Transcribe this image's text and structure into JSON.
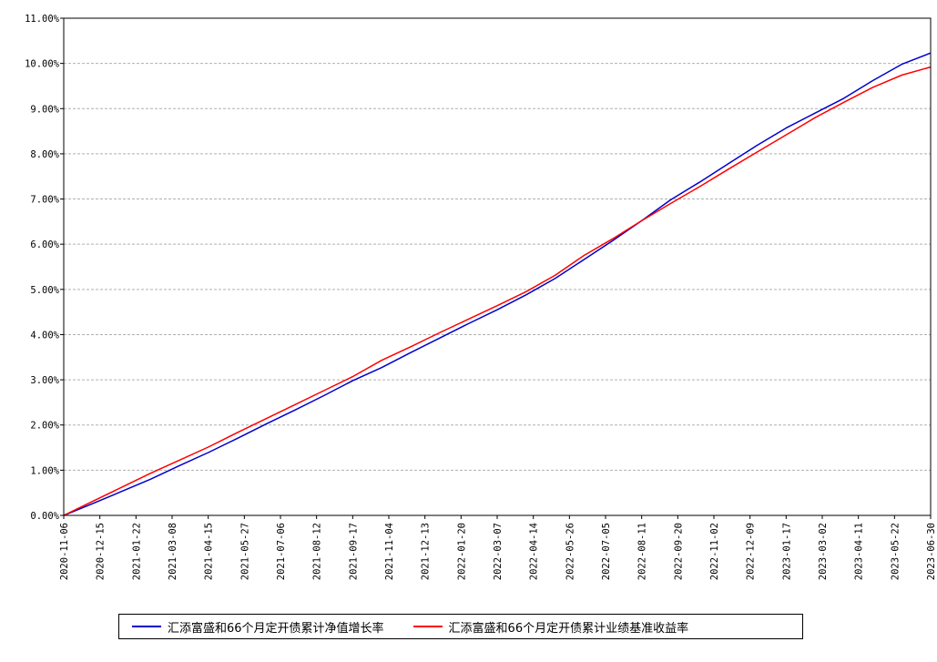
{
  "chart_data": {
    "type": "line",
    "title": "",
    "xlabel": "",
    "ylabel": "",
    "ylim": [
      0,
      11
    ],
    "y_ticks": [
      "0.00%",
      "1.00%",
      "2.00%",
      "3.00%",
      "4.00%",
      "5.00%",
      "6.00%",
      "7.00%",
      "8.00%",
      "9.00%",
      "10.00%",
      "11.00%"
    ],
    "x_ticks": [
      "2020-11-06",
      "2020-12-15",
      "2021-01-22",
      "2021-03-08",
      "2021-04-15",
      "2021-05-27",
      "2021-07-06",
      "2021-08-12",
      "2021-09-17",
      "2021-11-04",
      "2021-12-13",
      "2022-01-20",
      "2022-03-07",
      "2022-04-14",
      "2022-05-26",
      "2022-07-05",
      "2022-08-11",
      "2022-09-20",
      "2022-11-02",
      "2022-12-09",
      "2023-01-17",
      "2023-03-02",
      "2023-04-11",
      "2023-05-22",
      "2023-06-30"
    ],
    "grid": true,
    "legend_position": "bottom",
    "series": [
      {
        "name": "汇添富盛和66个月定开债累计净值增长率",
        "color": "#0000cc",
        "values": [
          0.0,
          0.26,
          0.53,
          0.8,
          1.1,
          1.39,
          1.7,
          2.02,
          2.33,
          2.65,
          2.98,
          3.27,
          3.6,
          3.92,
          4.24,
          4.55,
          4.88,
          5.24,
          5.66,
          6.08,
          6.52,
          6.98,
          7.37,
          7.78,
          8.19,
          8.57,
          8.9,
          9.23,
          9.62,
          9.98,
          10.23
        ]
      },
      {
        "name": "汇添富盛和66个月定开债累计业绩基准收益率",
        "color": "#ff0000",
        "values": [
          0.0,
          0.31,
          0.62,
          0.93,
          1.22,
          1.51,
          1.83,
          2.14,
          2.45,
          2.76,
          3.07,
          3.43,
          3.73,
          4.04,
          4.34,
          4.64,
          4.95,
          5.31,
          5.75,
          6.12,
          6.52,
          6.9,
          7.27,
          7.66,
          8.04,
          8.42,
          8.8,
          9.14,
          9.47,
          9.74,
          9.92
        ]
      }
    ]
  }
}
